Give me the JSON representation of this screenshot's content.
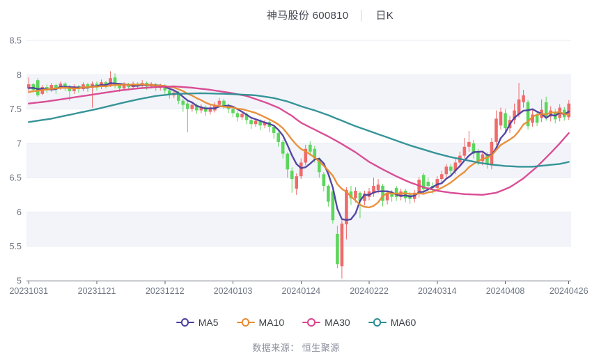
{
  "title": {
    "stock": "神马股份 600810",
    "separator": "│",
    "period": "日K"
  },
  "footer": {
    "source_text": "数据来源：  恒生聚源"
  },
  "chart_data": {
    "type": "candlestick",
    "x_tick_labels": [
      "20231031",
      "20231121",
      "20231212",
      "20240103",
      "20240124",
      "20240222",
      "20240314",
      "20240408",
      "20240426"
    ],
    "x_tick_days": [
      0,
      15,
      30,
      45,
      60,
      75,
      90,
      105,
      119
    ],
    "y_ticks": [
      5,
      5.5,
      6,
      6.5,
      7,
      7.5,
      8,
      8.5
    ],
    "ylim": [
      5,
      8.5
    ],
    "up_color": "#ef6a6a",
    "down_color": "#5cd65c",
    "band_color": "#f2f4f9",
    "grid_color": "#e7ebf2",
    "axis_line_color": "#61656f",
    "axis_label_color": "#6e7683",
    "ohlc_format": [
      "open",
      "close",
      "low",
      "high"
    ],
    "candles": [
      [
        7.8,
        7.86,
        7.76,
        7.96
      ],
      [
        7.86,
        7.78,
        7.74,
        7.88
      ],
      [
        7.92,
        7.7,
        7.68,
        7.95
      ],
      [
        7.72,
        7.82,
        7.7,
        7.85
      ],
      [
        7.82,
        7.78,
        7.73,
        7.86
      ],
      [
        7.78,
        7.85,
        7.75,
        7.88
      ],
      [
        7.85,
        7.8,
        7.72,
        7.87
      ],
      [
        7.8,
        7.87,
        7.78,
        7.9
      ],
      [
        7.87,
        7.82,
        7.76,
        7.89
      ],
      [
        7.82,
        7.76,
        7.62,
        7.85
      ],
      [
        7.76,
        7.83,
        7.72,
        7.86
      ],
      [
        7.83,
        7.79,
        7.74,
        7.85
      ],
      [
        7.79,
        7.86,
        7.76,
        7.89
      ],
      [
        7.86,
        7.81,
        7.75,
        7.88
      ],
      [
        7.81,
        7.87,
        7.52,
        7.9
      ],
      [
        7.87,
        7.83,
        7.77,
        7.9
      ],
      [
        7.83,
        7.89,
        7.79,
        7.93
      ],
      [
        7.89,
        7.85,
        7.8,
        7.91
      ],
      [
        7.85,
        7.95,
        7.82,
        8.05
      ],
      [
        7.96,
        7.84,
        7.8,
        8.02
      ],
      [
        7.84,
        7.8,
        7.75,
        7.87
      ],
      [
        7.8,
        7.86,
        7.77,
        7.89
      ],
      [
        7.86,
        7.82,
        7.78,
        7.88
      ],
      [
        7.82,
        7.87,
        7.79,
        7.9
      ],
      [
        7.87,
        7.84,
        7.79,
        7.89
      ],
      [
        7.84,
        7.88,
        7.81,
        7.92
      ],
      [
        7.88,
        7.83,
        7.78,
        7.9
      ],
      [
        7.83,
        7.86,
        7.8,
        7.89
      ],
      [
        7.86,
        7.81,
        7.76,
        7.88
      ],
      [
        7.81,
        7.84,
        7.77,
        7.87
      ],
      [
        7.84,
        7.77,
        7.72,
        7.86
      ],
      [
        7.77,
        7.7,
        7.65,
        7.79
      ],
      [
        7.7,
        7.74,
        7.66,
        7.77
      ],
      [
        7.74,
        7.62,
        7.57,
        7.76
      ],
      [
        7.62,
        7.56,
        7.46,
        7.65
      ],
      [
        7.58,
        7.5,
        7.16,
        7.62
      ],
      [
        7.5,
        7.56,
        7.46,
        7.6
      ],
      [
        7.56,
        7.48,
        7.43,
        7.58
      ],
      [
        7.48,
        7.53,
        7.44,
        7.57
      ],
      [
        7.53,
        7.46,
        7.4,
        7.55
      ],
      [
        7.46,
        7.52,
        7.42,
        7.56
      ],
      [
        7.48,
        7.56,
        7.45,
        7.6
      ],
      [
        7.56,
        7.62,
        7.52,
        7.66
      ],
      [
        7.62,
        7.55,
        7.5,
        7.65
      ],
      [
        7.55,
        7.5,
        7.44,
        7.58
      ],
      [
        7.5,
        7.44,
        7.38,
        7.53
      ],
      [
        7.44,
        7.38,
        7.32,
        7.47
      ],
      [
        7.38,
        7.43,
        7.34,
        7.46
      ],
      [
        7.43,
        7.34,
        7.28,
        7.45
      ],
      [
        7.34,
        7.28,
        7.21,
        7.37
      ],
      [
        7.28,
        7.33,
        7.24,
        7.36
      ],
      [
        7.33,
        7.26,
        7.19,
        7.35
      ],
      [
        7.26,
        7.31,
        7.22,
        7.34
      ],
      [
        7.31,
        7.24,
        7.16,
        7.33
      ],
      [
        7.24,
        7.15,
        7.07,
        7.26
      ],
      [
        7.15,
        7.02,
        6.95,
        7.17
      ],
      [
        7.02,
        6.85,
        6.78,
        7.05
      ],
      [
        6.85,
        6.62,
        6.5,
        6.87
      ],
      [
        6.6,
        6.48,
        6.28,
        6.65
      ],
      [
        6.34,
        6.52,
        6.25,
        6.56
      ],
      [
        6.52,
        6.72,
        6.48,
        6.78
      ],
      [
        6.72,
        6.92,
        6.68,
        6.98
      ],
      [
        6.98,
        6.88,
        6.82,
        7.03
      ],
      [
        6.92,
        6.78,
        6.72,
        6.96
      ],
      [
        6.78,
        6.58,
        6.5,
        6.8
      ],
      [
        6.55,
        6.38,
        6.3,
        6.58
      ],
      [
        6.38,
        6.15,
        6.08,
        6.4
      ],
      [
        6.3,
        5.88,
        5.83,
        6.33
      ],
      [
        5.68,
        5.24,
        5.18,
        5.8
      ],
      [
        5.21,
        5.83,
        5.03,
        5.88
      ],
      [
        5.82,
        6.32,
        5.6,
        6.36
      ],
      [
        6.3,
        6.2,
        6.1,
        6.38
      ],
      [
        6.2,
        6.31,
        6.14,
        6.36
      ],
      [
        6.28,
        6.16,
        5.91,
        6.3
      ],
      [
        6.16,
        6.27,
        6.1,
        6.31
      ],
      [
        6.22,
        6.3,
        6.17,
        6.35
      ],
      [
        6.27,
        6.38,
        6.22,
        6.5
      ],
      [
        6.32,
        6.4,
        6.27,
        6.48
      ],
      [
        6.38,
        6.16,
        6.08,
        6.41
      ],
      [
        6.17,
        6.27,
        6.11,
        6.31
      ],
      [
        6.27,
        6.22,
        6.15,
        6.32
      ],
      [
        6.35,
        6.22,
        6.16,
        6.38
      ],
      [
        6.22,
        6.3,
        6.17,
        6.34
      ],
      [
        6.31,
        6.2,
        6.14,
        6.34
      ],
      [
        6.25,
        6.19,
        6.12,
        6.29
      ],
      [
        6.19,
        6.28,
        6.14,
        6.32
      ],
      [
        6.26,
        6.47,
        6.21,
        6.51
      ],
      [
        6.54,
        6.33,
        6.28,
        6.57
      ],
      [
        6.44,
        6.38,
        6.3,
        6.5
      ],
      [
        6.38,
        6.35,
        6.27,
        6.43
      ],
      [
        6.35,
        6.48,
        6.31,
        6.52
      ],
      [
        6.48,
        6.55,
        6.42,
        6.6
      ],
      [
        6.55,
        6.66,
        6.5,
        6.7
      ],
      [
        6.66,
        6.6,
        6.53,
        6.7
      ],
      [
        6.6,
        6.72,
        6.55,
        6.77
      ],
      [
        6.72,
        6.82,
        6.66,
        6.88
      ],
      [
        6.82,
        6.95,
        6.78,
        7.08
      ],
      [
        6.95,
        7.02,
        6.88,
        7.18
      ],
      [
        7.0,
        6.85,
        6.78,
        7.05
      ],
      [
        6.88,
        6.74,
        6.68,
        6.92
      ],
      [
        6.74,
        6.84,
        6.68,
        6.89
      ],
      [
        6.84,
        6.7,
        6.63,
        6.87
      ],
      [
        6.68,
        7.02,
        6.62,
        7.08
      ],
      [
        7.02,
        7.36,
        6.98,
        7.48
      ],
      [
        7.26,
        7.46,
        7.2,
        7.52
      ],
      [
        7.44,
        7.22,
        7.15,
        7.5
      ],
      [
        7.22,
        7.34,
        7.15,
        7.4
      ],
      [
        7.34,
        7.48,
        7.28,
        7.58
      ],
      [
        7.42,
        7.64,
        7.38,
        7.88
      ],
      [
        7.6,
        7.7,
        7.52,
        7.78
      ],
      [
        7.6,
        7.25,
        7.2,
        7.63
      ],
      [
        7.3,
        7.42,
        7.24,
        7.5
      ],
      [
        7.42,
        7.3,
        7.25,
        7.46
      ],
      [
        7.37,
        7.49,
        7.31,
        7.64
      ],
      [
        7.6,
        7.39,
        7.33,
        7.68
      ],
      [
        7.39,
        7.48,
        7.32,
        7.54
      ],
      [
        7.45,
        7.35,
        7.29,
        7.5
      ],
      [
        7.37,
        7.52,
        7.32,
        7.57
      ],
      [
        7.49,
        7.38,
        7.33,
        7.53
      ],
      [
        7.38,
        7.58,
        7.34,
        7.63
      ]
    ],
    "ma_warmup_closes": [
      7.6,
      7.63,
      7.66,
      7.69,
      7.72,
      7.74,
      7.76,
      7.78,
      7.8,
      7.82
    ],
    "series": [
      {
        "name": "MA5",
        "color": "#4b3e9e",
        "compute": "sma",
        "window": 5
      },
      {
        "name": "MA10",
        "color": "#e88b33",
        "compute": "sma",
        "window": 10
      },
      {
        "name": "MA30",
        "color": "#d8458f",
        "compute": "points",
        "points": [
          [
            0,
            7.58
          ],
          [
            4,
            7.61
          ],
          [
            8,
            7.65
          ],
          [
            12,
            7.69
          ],
          [
            16,
            7.73
          ],
          [
            20,
            7.77
          ],
          [
            24,
            7.8
          ],
          [
            28,
            7.82
          ],
          [
            32,
            7.83
          ],
          [
            36,
            7.81
          ],
          [
            40,
            7.78
          ],
          [
            44,
            7.74
          ],
          [
            48,
            7.69
          ],
          [
            52,
            7.6
          ],
          [
            55,
            7.52
          ],
          [
            58,
            7.4
          ],
          [
            60,
            7.3
          ],
          [
            63,
            7.2
          ],
          [
            66,
            7.1
          ],
          [
            69,
            6.99
          ],
          [
            72,
            6.87
          ],
          [
            75,
            6.73
          ],
          [
            78,
            6.62
          ],
          [
            81,
            6.52
          ],
          [
            84,
            6.43
          ],
          [
            87,
            6.36
          ],
          [
            90,
            6.31
          ],
          [
            93,
            6.28
          ],
          [
            96,
            6.26
          ],
          [
            100,
            6.25
          ],
          [
            103,
            6.28
          ],
          [
            106,
            6.36
          ],
          [
            109,
            6.49
          ],
          [
            112,
            6.66
          ],
          [
            115,
            6.86
          ],
          [
            117,
            7.0
          ],
          [
            119,
            7.15
          ]
        ]
      },
      {
        "name": "MA60",
        "color": "#2b8e92",
        "compute": "points",
        "points": [
          [
            0,
            7.31
          ],
          [
            5,
            7.36
          ],
          [
            10,
            7.43
          ],
          [
            15,
            7.5
          ],
          [
            20,
            7.58
          ],
          [
            24,
            7.64
          ],
          [
            28,
            7.69
          ],
          [
            32,
            7.72
          ],
          [
            38,
            7.73
          ],
          [
            44,
            7.72
          ],
          [
            50,
            7.7
          ],
          [
            54,
            7.66
          ],
          [
            57,
            7.61
          ],
          [
            60,
            7.54
          ],
          [
            63,
            7.48
          ],
          [
            66,
            7.41
          ],
          [
            69,
            7.33
          ],
          [
            72,
            7.25
          ],
          [
            75,
            7.18
          ],
          [
            78,
            7.11
          ],
          [
            81,
            7.04
          ],
          [
            84,
            6.97
          ],
          [
            87,
            6.91
          ],
          [
            90,
            6.85
          ],
          [
            93,
            6.8
          ],
          [
            96,
            6.76
          ],
          [
            99,
            6.72
          ],
          [
            102,
            6.69
          ],
          [
            105,
            6.67
          ],
          [
            108,
            6.66
          ],
          [
            111,
            6.66
          ],
          [
            114,
            6.68
          ],
          [
            117,
            6.7
          ],
          [
            119,
            6.73
          ]
        ]
      }
    ]
  }
}
